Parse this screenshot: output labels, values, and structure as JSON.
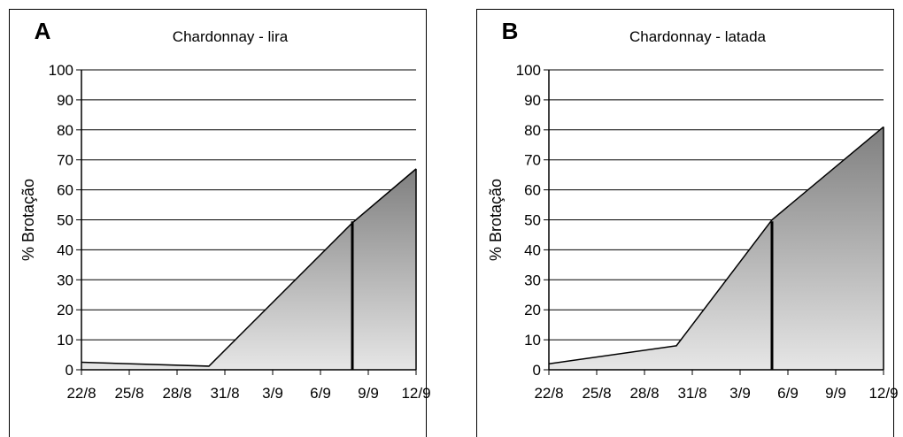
{
  "colors": {
    "background": "#ffffff",
    "frame": "#000000",
    "area_top": "#7f7f7f",
    "area_bottom": "#e6e6e6",
    "gridline": "#000000"
  },
  "chart_data": [
    {
      "type": "area",
      "panel_label": "A",
      "title": "Chardonnay - lira",
      "ylabel": "% Brotação",
      "xlabel": "",
      "x_ticks": [
        "22/8",
        "25/8",
        "28/8",
        "31/8",
        "3/9",
        "6/9",
        "9/9",
        "12/9"
      ],
      "xlim": [
        "22/8",
        "12/9"
      ],
      "ylim": [
        0,
        100
      ],
      "y_ticks": [
        0,
        10,
        20,
        30,
        40,
        50,
        60,
        70,
        80,
        90,
        100
      ],
      "grid": true,
      "legend": "none",
      "series": [
        {
          "points": [
            {
              "x": "22/8",
              "y": 2.5
            },
            {
              "x": "30/8",
              "y": 1.2
            },
            {
              "x": "8/9",
              "y": 49
            },
            {
              "x": "12/9",
              "y": 67
            }
          ]
        }
      ],
      "marker_x": "8/9"
    },
    {
      "type": "area",
      "panel_label": "B",
      "title": "Chardonnay - latada",
      "ylabel": "% Brotação",
      "xlabel": "",
      "x_ticks": [
        "22/8",
        "25/8",
        "28/8",
        "31/8",
        "3/9",
        "6/9",
        "9/9",
        "12/9"
      ],
      "xlim": [
        "22/8",
        "12/9"
      ],
      "ylim": [
        0,
        100
      ],
      "y_ticks": [
        0,
        10,
        20,
        30,
        40,
        50,
        60,
        70,
        80,
        90,
        100
      ],
      "grid": true,
      "legend": "none",
      "series": [
        {
          "points": [
            {
              "x": "22/8",
              "y": 2
            },
            {
              "x": "30/8",
              "y": 8
            },
            {
              "x": "5/9",
              "y": 50
            },
            {
              "x": "12/9",
              "y": 81
            }
          ]
        }
      ],
      "marker_x": "5/9"
    }
  ]
}
